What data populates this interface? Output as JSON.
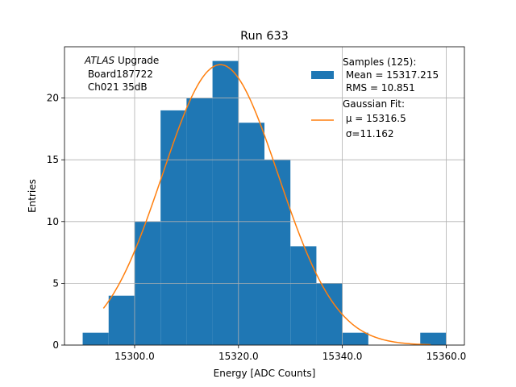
{
  "chart_data": {
    "type": "bar",
    "title": "Run 633",
    "xlabel": "Energy [ADC Counts]",
    "ylabel": "Entries",
    "xlim": [
      1528.6,
      15363.5
    ],
    "ylim": [
      0,
      24.15
    ],
    "grid": true,
    "x_ticks": [
      15300,
      15320,
      15340,
      15360
    ],
    "x_tick_labels": [
      "15300.0",
      "15320.0",
      "15340.0",
      "15360.0"
    ],
    "y_ticks": [
      0,
      5,
      10,
      15,
      20
    ],
    "y_tick_labels": [
      "0",
      "5",
      "10",
      "15",
      "20"
    ],
    "histogram": {
      "bin_edges": [
        15290,
        15295,
        15300,
        15305,
        15310,
        15315,
        15320,
        15325,
        15330,
        15335,
        15340,
        15345,
        15350,
        15355,
        15360
      ],
      "counts": [
        1,
        4,
        10,
        19,
        20,
        23,
        18,
        15,
        8,
        5,
        1,
        0,
        0,
        1
      ],
      "color": "#1f77b4"
    },
    "fit": {
      "amplitude": 22.7,
      "mu": 15316.5,
      "sigma": 11.162,
      "x_range": [
        15294,
        15357
      ],
      "color": "#ff7f0e"
    },
    "annotation": {
      "italic": "ATLAS",
      "rest": " Upgrade",
      "line2": " Board187722",
      "line3": " Ch021 35dB"
    },
    "legend": {
      "placement": "top-right",
      "entries": [
        {
          "lines": [
            "Samples (125):",
            " Mean = 15317.215",
            " RMS = 10.851"
          ]
        },
        {
          "lines": [
            "Gaussian Fit:",
            " μ = 15316.5",
            " σ=11.162"
          ]
        }
      ]
    }
  }
}
